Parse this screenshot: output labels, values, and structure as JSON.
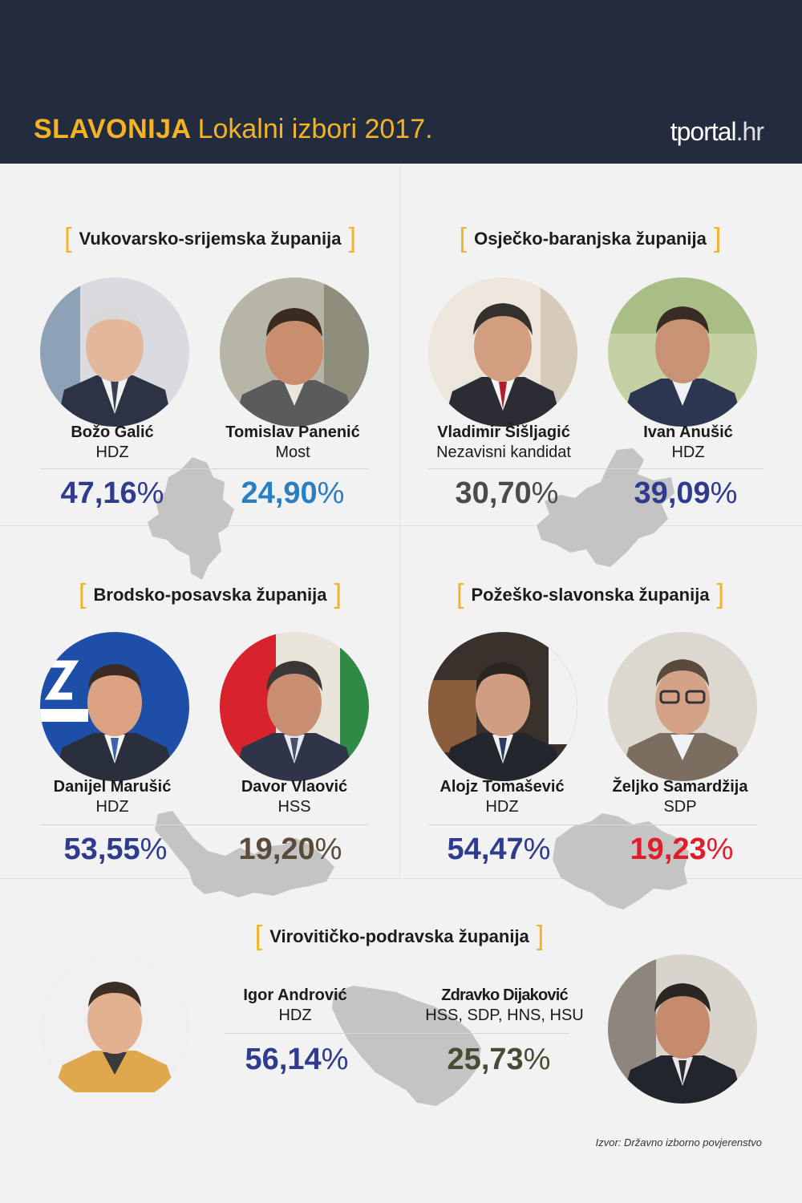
{
  "header": {
    "region": "SLAVONIJA",
    "subtitle": "Lokalni izbori 2017.",
    "logo_main": "tportal",
    "logo_suffix": ".hr"
  },
  "colors": {
    "header_bg": "#232c3f",
    "accent_yellow": "#f4b324",
    "hdz_blue": "#2e3b8e",
    "most_blue": "#2a7fc2",
    "independent_gray": "#4b4b4b",
    "hss_brown": "#5b4b3a",
    "sdp_red": "#e11d2b",
    "coalition_olive": "#4a4a35",
    "map_gray": "#c4c4c4"
  },
  "counties": [
    {
      "name": "Vukovarsko-srijemska županija",
      "candidates": [
        {
          "name": "Božo Galić",
          "party": "HDZ",
          "percent": "47,16",
          "color": "#2e3b8e"
        },
        {
          "name": "Tomislav Panenić",
          "party": "Most",
          "percent": "24,90",
          "color": "#2a7fc2"
        }
      ]
    },
    {
      "name": "Osječko-baranjska županija",
      "candidates": [
        {
          "name": "Vladimir Šišljagić",
          "party": "Nezavisni kandidat",
          "percent": "30,70",
          "color": "#4b4b4b"
        },
        {
          "name": "Ivan Anušić",
          "party": "HDZ",
          "percent": "39,09",
          "color": "#2e3b8e"
        }
      ]
    },
    {
      "name": "Brodsko-posavska županija",
      "candidates": [
        {
          "name": "Danijel Marušić",
          "party": "HDZ",
          "percent": "53,55",
          "color": "#2e3b8e"
        },
        {
          "name": "Davor Vlaović",
          "party": "HSS",
          "percent": "19,20",
          "color": "#5b4b3a"
        }
      ]
    },
    {
      "name": "Požeško-slavonska županija",
      "candidates": [
        {
          "name": "Alojz Tomašević",
          "party": "HDZ",
          "percent": "54,47",
          "color": "#2e3b8e"
        },
        {
          "name": "Željko Samardžija",
          "party": "SDP",
          "percent": "19,23",
          "color": "#e11d2b"
        }
      ]
    },
    {
      "name": "Virovitičko-podravska županija",
      "candidates": [
        {
          "name": "Igor Andrović",
          "party": "HDZ",
          "percent": "56,14",
          "color": "#2e3b8e"
        },
        {
          "name": "Zdravko Dijaković",
          "party": "HSS, SDP, HNS, HSU",
          "percent": "25,73",
          "color": "#4a4a35"
        }
      ]
    }
  ],
  "percent_sign": "%",
  "source": "Izvor: Državno izborno povjerenstvo"
}
